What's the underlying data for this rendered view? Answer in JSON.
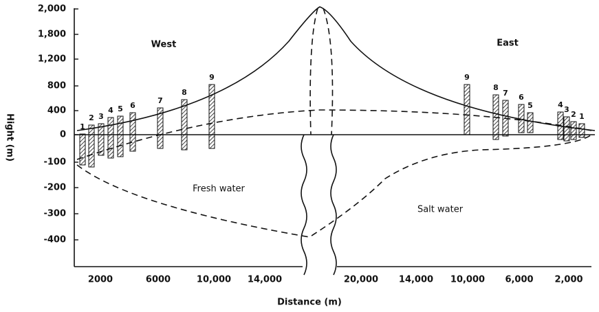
{
  "y_axis": {
    "title": "Hight (m)",
    "ticks": [
      "2,000",
      "1,800",
      "1,200",
      "800",
      "400",
      "0",
      "-100",
      "-200",
      "-300",
      "-400"
    ]
  },
  "x_axis": {
    "title": "Distance (m)",
    "ticks": [
      "2000",
      "6000",
      "10,000",
      "14,000",
      "20,000",
      "14,000",
      "10,000",
      "6,000",
      "2,000"
    ]
  },
  "regions": {
    "west": "West",
    "east": "East",
    "fresh": "Fresh water",
    "salt": "Salt water"
  },
  "wells": {
    "west": [
      "1",
      "2",
      "3",
      "4",
      "5",
      "6",
      "7",
      "8",
      "9"
    ],
    "east": [
      "9",
      "8",
      "7",
      "6",
      "5",
      "4",
      "3",
      "2",
      "1"
    ]
  }
}
